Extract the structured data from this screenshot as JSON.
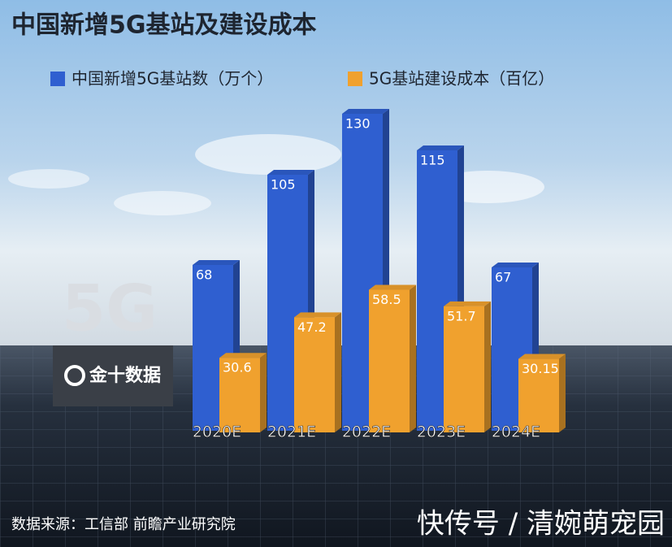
{
  "chart_data": {
    "type": "bar",
    "title": "中国新增5G基站及建设成本",
    "categories": [
      "2020E",
      "2021E",
      "2022E",
      "2023E",
      "2024E"
    ],
    "series": [
      {
        "name": "中国新增5G基站数（万个）",
        "color": "#2f5fd0",
        "values": [
          68,
          105,
          130,
          115,
          67
        ]
      },
      {
        "name": "5G基站建设成本（百亿）",
        "color": "#f0a12e",
        "values": [
          30.6,
          47.2,
          58.5,
          51.7,
          30.15
        ]
      }
    ],
    "legend": "top-left",
    "source": "数据来源：工信部 前瞻产业研究院"
  },
  "brand": {
    "badge": "5G",
    "name": "金十数据"
  },
  "watermark": "快传号 / 清婉萌宠园"
}
